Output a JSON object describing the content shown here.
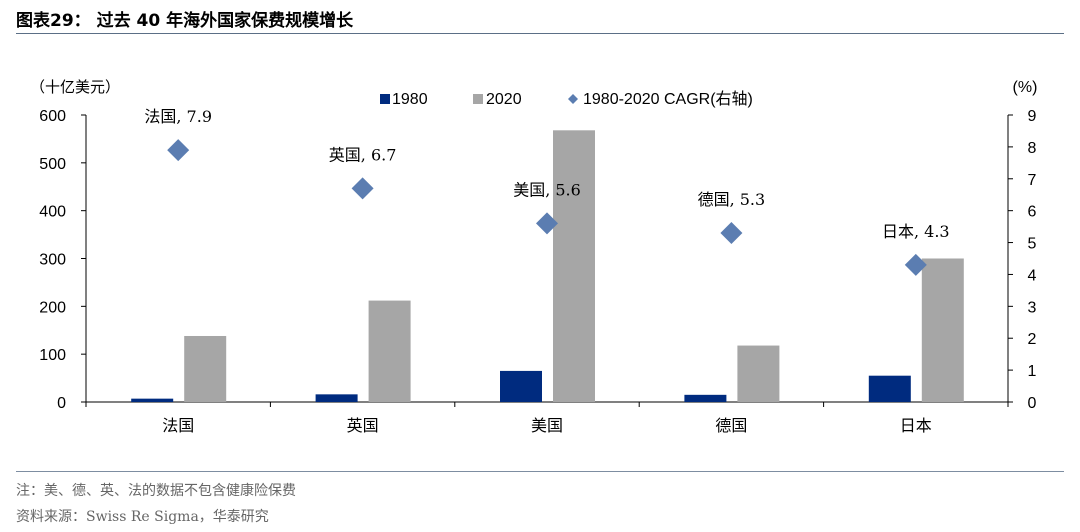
{
  "header": {
    "title": "图表29： 过去 40 年海外国家保费规模增长"
  },
  "footer": {
    "note": "注：美、德、英、法的数据不包含健康险保费",
    "source": "资料来源：Swiss Re Sigma，华泰研究"
  },
  "chart_data": {
    "type": "bar",
    "categories": [
      "法国",
      "英国",
      "美国",
      "德国",
      "日本"
    ],
    "y_left_unit": "（十亿美元）",
    "y_right_unit": "(%)",
    "ylim_left": [
      0,
      600
    ],
    "yticks_left": [
      0,
      100,
      200,
      300,
      400,
      500,
      600
    ],
    "ylim_right": [
      0,
      9
    ],
    "yticks_right": [
      0,
      1,
      2,
      3,
      4,
      5,
      6,
      7,
      8,
      9
    ],
    "grid": false,
    "legend": "top-center",
    "series": [
      {
        "name": "1980",
        "type": "bar",
        "axis": "left",
        "color": "#002b7f",
        "values": [
          7,
          16,
          65,
          15,
          55
        ]
      },
      {
        "name": "2020",
        "type": "bar",
        "axis": "left",
        "color": "#a6a6a6",
        "values": [
          138,
          212,
          568,
          118,
          300
        ]
      },
      {
        "name": "1980-2020 CAGR(右轴)",
        "type": "scatter",
        "marker": "diamond",
        "axis": "right",
        "color": "#5b7db1",
        "values": [
          7.9,
          6.7,
          5.6,
          5.3,
          4.3
        ]
      }
    ],
    "point_labels": [
      "法国, 7.9",
      "英国, 6.7",
      "美国, 5.6",
      "德国, 5.3",
      "日本, 4.3"
    ]
  }
}
